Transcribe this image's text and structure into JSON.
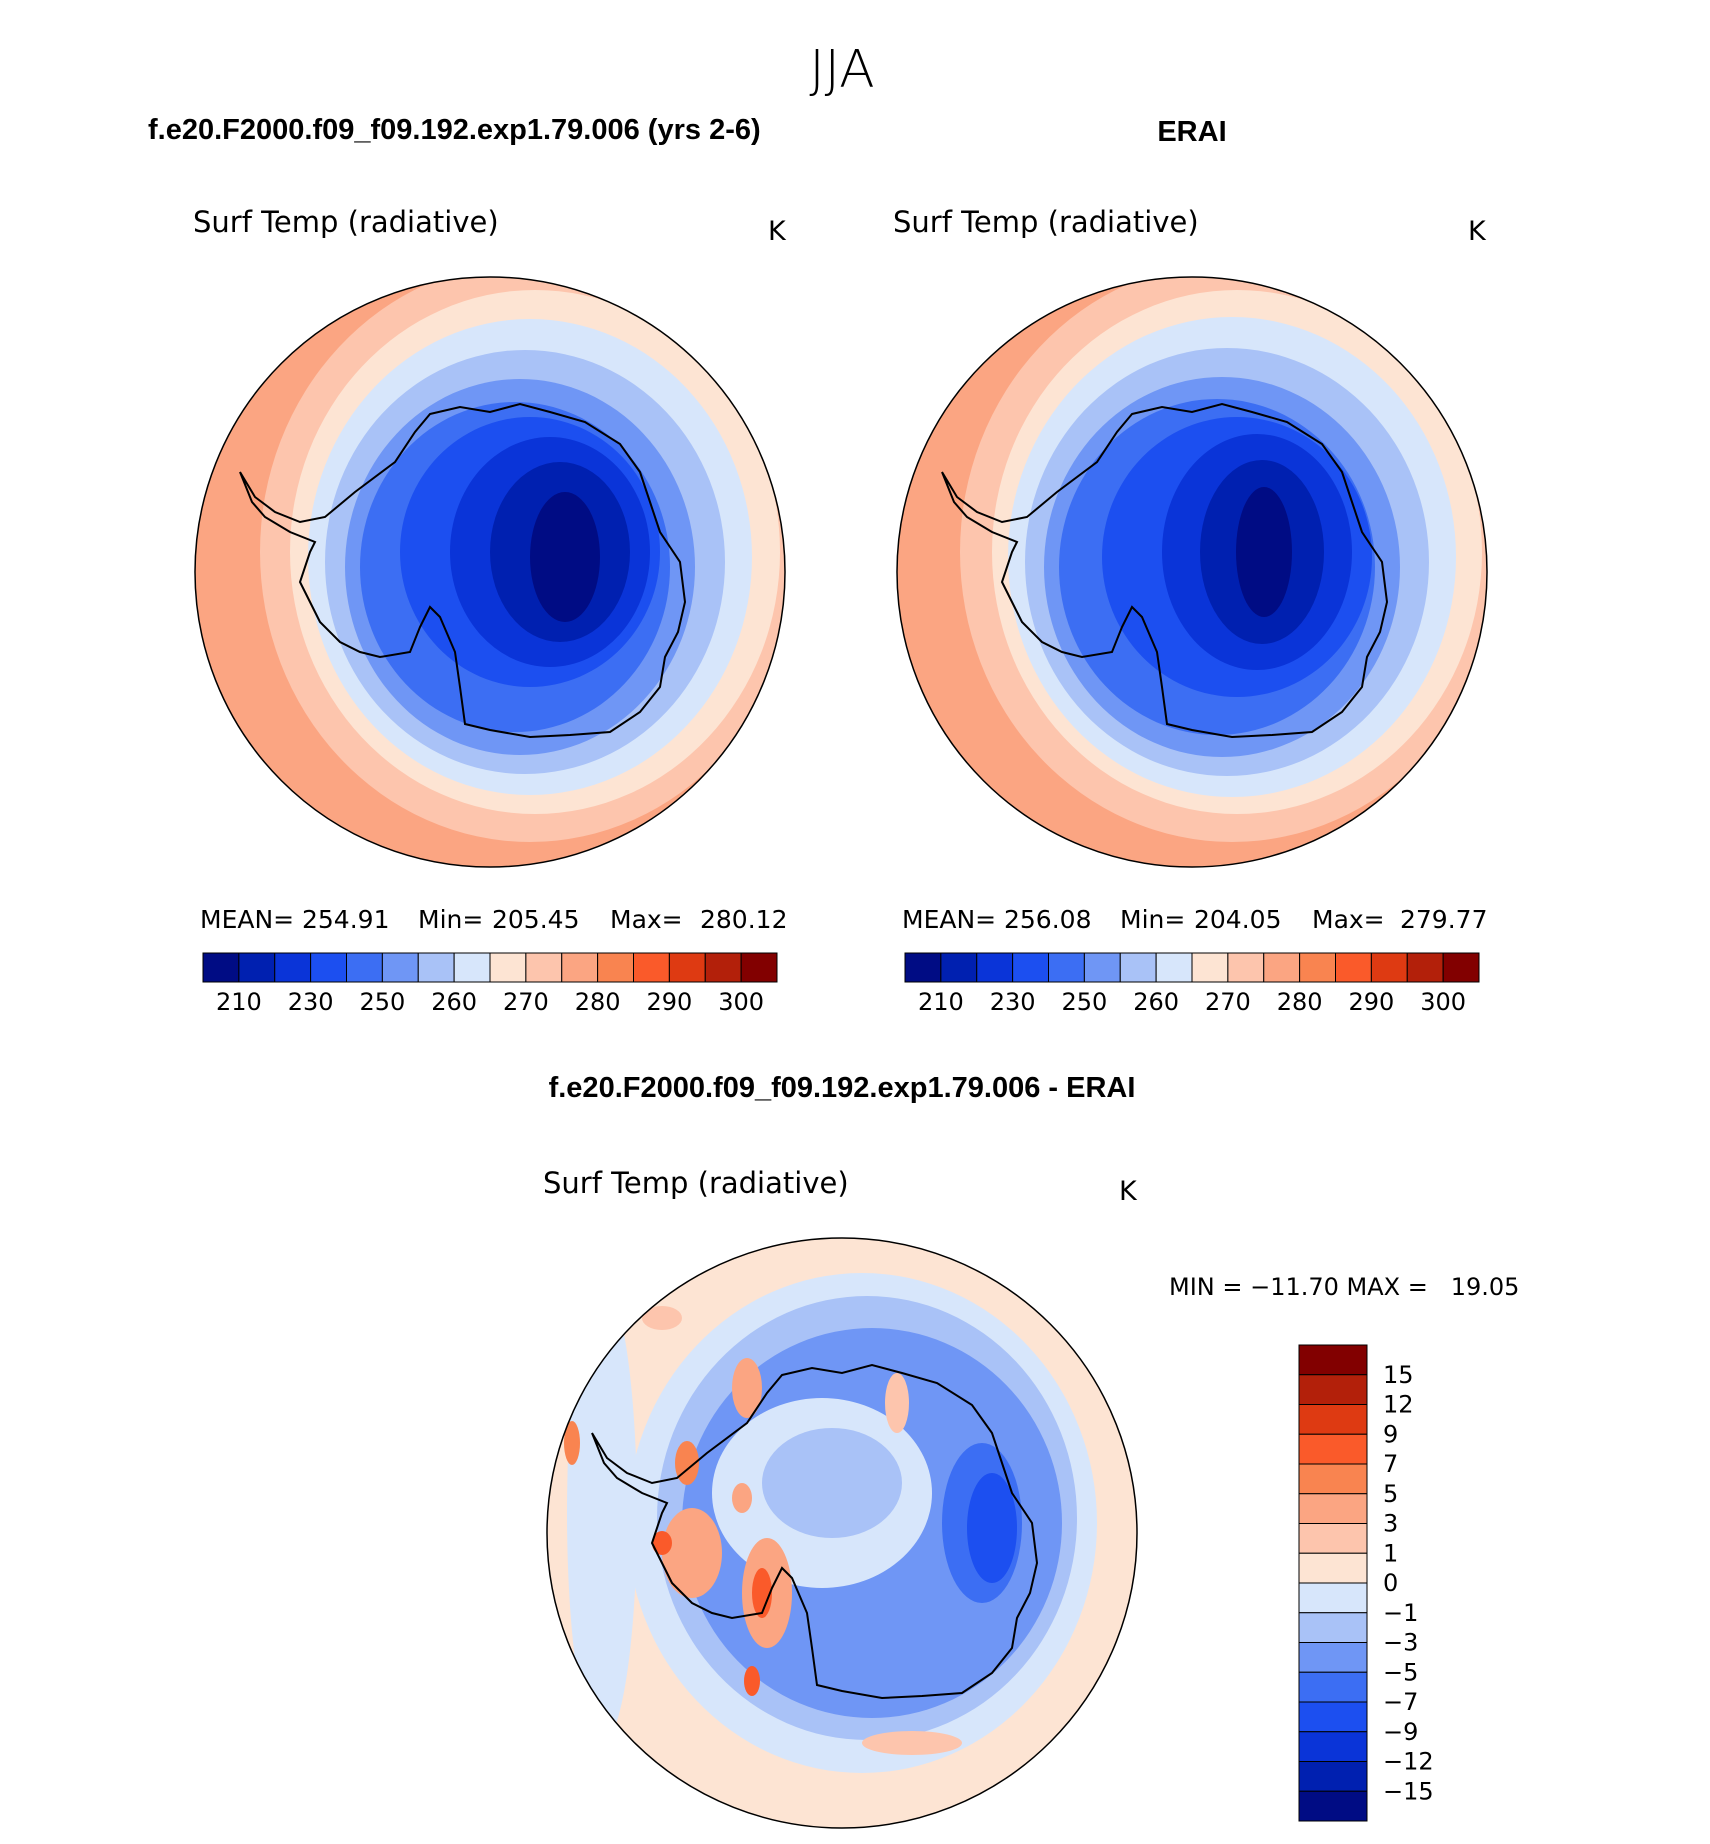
{
  "season": "JJA",
  "colors": {
    "abs": [
      "#000c84",
      "#0020b0",
      "#0a34d8",
      "#1c4ff0",
      "#3c6ef3",
      "#6f96f5",
      "#a9c2f7",
      "#d7e6fb",
      "#fde4d3",
      "#fdc5ad",
      "#fba582",
      "#f98450",
      "#fa5a2a",
      "#de3a12",
      "#b3200a",
      "#820000"
    ],
    "diff": [
      "#000c84",
      "#0020b0",
      "#0a34d8",
      "#1c4ff0",
      "#3c6ef3",
      "#6f96f5",
      "#a9c2f7",
      "#d7e6fb",
      "#fde4d3",
      "#fdc5ad",
      "#fba582",
      "#f98450",
      "#fa5a2a",
      "#de3a12",
      "#b3200a",
      "#820000"
    ]
  },
  "panels": [
    {
      "case_title": "f.e20.F2000.f09_f09.192.exp1.79.006 (yrs 2-6)",
      "var_label": "Surf Temp (radiative)",
      "units": "K",
      "stats": {
        "mean_label": "MEAN=",
        "mean": "254.91",
        "min_label": "Min=",
        "min": "205.45",
        "max_label": "Max=",
        "max": "280.12"
      }
    },
    {
      "case_title": "ERAI",
      "var_label": "Surf Temp (radiative)",
      "units": "K",
      "stats": {
        "mean_label": "MEAN=",
        "mean": "256.08",
        "min_label": "Min=",
        "min": "204.05",
        "max_label": "Max=",
        "max": "279.77"
      }
    }
  ],
  "diff_panel": {
    "case_title": "f.e20.F2000.f09_f09.192.exp1.79.006 - ERAI",
    "var_label": "Surf Temp (radiative)",
    "units": "K",
    "minmax": "MIN = −11.70 MAX =   19.05"
  },
  "chart_data": [
    {
      "type": "heatmap",
      "projection": "south polar stereographic",
      "title": "f.e20.F2000.f09_f09.192.exp1.79.006 (yrs 2-6)",
      "variable": "Surf Temp (radiative)",
      "units": "K",
      "mean": 254.91,
      "min": 205.45,
      "max": 280.12,
      "colorbar_ticks": [
        "210",
        "230",
        "250",
        "260",
        "270",
        "280",
        "290",
        "300"
      ]
    },
    {
      "type": "heatmap",
      "projection": "south polar stereographic",
      "title": "ERAI",
      "variable": "Surf Temp (radiative)",
      "units": "K",
      "mean": 256.08,
      "min": 204.05,
      "max": 279.77,
      "colorbar_ticks": [
        "210",
        "230",
        "250",
        "260",
        "270",
        "280",
        "290",
        "300"
      ]
    },
    {
      "type": "heatmap",
      "projection": "south polar stereographic",
      "title": "f.e20.F2000.f09_f09.192.exp1.79.006 - ERAI",
      "variable": "Surf Temp (radiative)",
      "units": "K",
      "min": -11.7,
      "max": 19.05,
      "colorbar_ticks": [
        "15",
        "12",
        "9",
        "7",
        "5",
        "3",
        "1",
        "0",
        "−1",
        "−3",
        "−5",
        "−7",
        "−9",
        "−12",
        "−15"
      ]
    }
  ]
}
